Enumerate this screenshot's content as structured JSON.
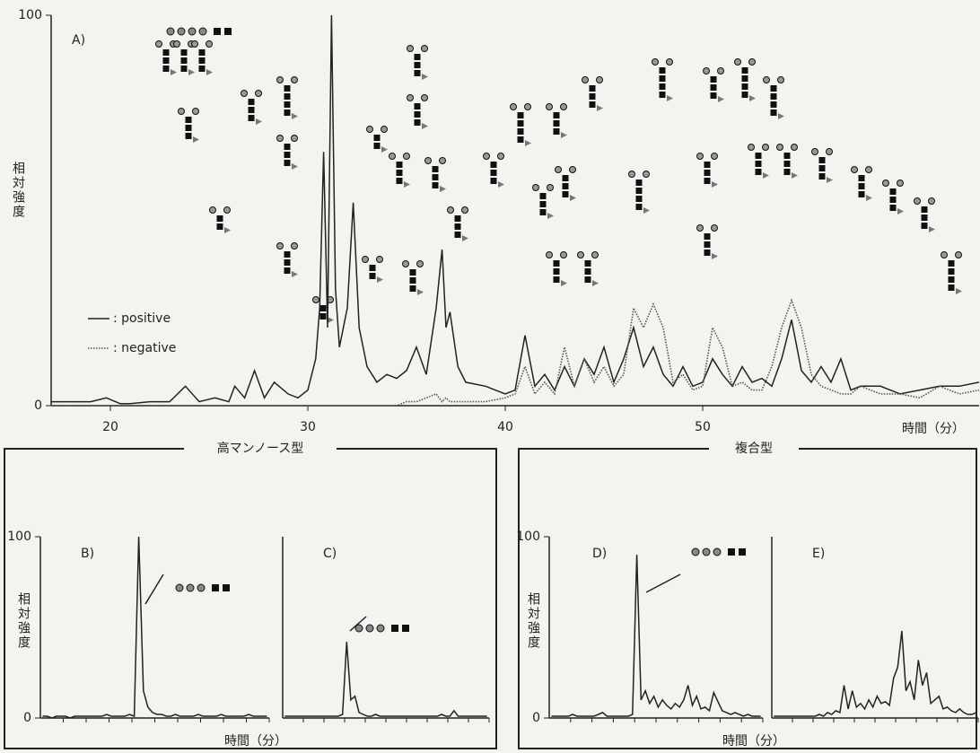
{
  "chart_data": [
    {
      "type": "line",
      "title": "A)",
      "y_label": "相対強度",
      "x_label": "時間（分）",
      "x": [
        17,
        18,
        19,
        19.8,
        20.5,
        21,
        22,
        23,
        23.8,
        24.5,
        25.3,
        26,
        26.3,
        26.8,
        27.3,
        27.8,
        28.3,
        29,
        29.5,
        30,
        30.4,
        30.6,
        30.8,
        31,
        31.2,
        31.4,
        31.6,
        32,
        32.3,
        32.6,
        33,
        33.5,
        34,
        34.5,
        35,
        35.5,
        36,
        36.5,
        36.8,
        37,
        37.2,
        37.6,
        38,
        39,
        40,
        40.5,
        41,
        41.5,
        42,
        42.5,
        43,
        43.5,
        44,
        44.5,
        45,
        45.5,
        46,
        46.5,
        47,
        47.5,
        48,
        48.5,
        49,
        49.5,
        50,
        50.5,
        51,
        51.5,
        52,
        52.5,
        53,
        53.5,
        54,
        54.5,
        55,
        55.5,
        56,
        56.5,
        57,
        57.5,
        58,
        59,
        60,
        61,
        62,
        63,
        64
      ],
      "series": [
        {
          "name": ": positive",
          "style": "solid",
          "color": "#222222",
          "values": [
            1,
            1,
            1,
            2,
            0.5,
            0.5,
            1,
            1,
            5,
            1,
            2,
            1,
            5,
            2,
            9,
            2,
            6,
            3,
            2,
            4,
            12,
            25,
            65,
            20,
            100,
            30,
            15,
            25,
            52,
            20,
            10,
            6,
            8,
            7,
            9,
            15,
            8,
            25,
            40,
            20,
            24,
            10,
            6,
            5,
            3,
            4,
            18,
            5,
            8,
            4,
            10,
            5,
            12,
            8,
            15,
            6,
            12,
            20,
            10,
            15,
            8,
            5,
            10,
            5,
            6,
            12,
            8,
            5,
            10,
            6,
            7,
            5,
            12,
            22,
            9,
            6,
            10,
            6,
            12,
            4,
            5,
            5,
            3,
            4,
            5,
            5,
            6
          ]
        },
        {
          "name": ": negative",
          "style": "dotted",
          "color": "#555555",
          "values": [
            0,
            0,
            0,
            0,
            0,
            0,
            0,
            0,
            0,
            0,
            0,
            0,
            0,
            0,
            0,
            0,
            0,
            0,
            0,
            0,
            0,
            0,
            0,
            0,
            0,
            0,
            0,
            0,
            0,
            0,
            0,
            0,
            0,
            0,
            1,
            1,
            2,
            3,
            1,
            2,
            1,
            1,
            1,
            1,
            2,
            3,
            10,
            3,
            6,
            3,
            15,
            5,
            12,
            6,
            10,
            5,
            8,
            25,
            20,
            26,
            20,
            6,
            8,
            4,
            5,
            20,
            15,
            5,
            6,
            4,
            4,
            10,
            20,
            27,
            20,
            8,
            5,
            4,
            3,
            3,
            5,
            3,
            3,
            2,
            5,
            3,
            4
          ]
        }
      ],
      "xlim": [
        17,
        64
      ],
      "ylim": [
        0,
        100
      ],
      "xticks": [
        20,
        30,
        40,
        50
      ],
      "yticks": [
        0,
        100
      ]
    },
    {
      "type": "line",
      "title": "B)",
      "color": "#222222",
      "ylim": [
        0,
        100
      ],
      "yticks": [
        0,
        100
      ],
      "values": [
        1,
        1,
        0,
        1,
        1,
        1,
        0,
        1,
        1,
        1,
        1,
        1,
        1,
        1,
        2,
        1,
        1,
        1,
        1,
        2,
        1,
        100,
        15,
        6,
        3,
        2,
        2,
        1,
        1,
        2,
        1,
        1,
        1,
        1,
        2,
        1,
        1,
        1,
        1,
        2,
        1,
        1,
        1,
        1,
        1,
        2,
        1,
        1,
        1,
        1
      ]
    },
    {
      "type": "line",
      "title": "C)",
      "color": "#222222",
      "ylim": [
        0,
        100
      ],
      "values": [
        1,
        1,
        1,
        1,
        1,
        1,
        1,
        1,
        1,
        1,
        1,
        1,
        1,
        1,
        2,
        42,
        10,
        12,
        3,
        2,
        1,
        1,
        2,
        1,
        1,
        1,
        1,
        1,
        1,
        1,
        1,
        1,
        1,
        1,
        1,
        1,
        1,
        1,
        2,
        1,
        1,
        4,
        1,
        1,
        1,
        1,
        1,
        1,
        1,
        1
      ]
    },
    {
      "type": "line",
      "title": "D)",
      "color": "#222222",
      "ylim": [
        0,
        100
      ],
      "yticks": [
        0,
        100
      ],
      "values": [
        1,
        1,
        1,
        1,
        1,
        2,
        1,
        1,
        1,
        1,
        1,
        2,
        3,
        1,
        1,
        1,
        1,
        1,
        1,
        2,
        90,
        10,
        15,
        8,
        12,
        6,
        10,
        7,
        5,
        8,
        6,
        10,
        18,
        7,
        12,
        5,
        6,
        4,
        14,
        9,
        4,
        3,
        2,
        3,
        2,
        1,
        2,
        1,
        1,
        1
      ]
    },
    {
      "type": "line",
      "title": "E)",
      "color": "#222222",
      "ylim": [
        0,
        100
      ],
      "values": [
        1,
        1,
        1,
        1,
        1,
        1,
        1,
        1,
        1,
        1,
        1,
        2,
        1,
        3,
        2,
        4,
        3,
        18,
        5,
        15,
        6,
        8,
        5,
        10,
        6,
        12,
        8,
        9,
        7,
        22,
        28,
        48,
        15,
        20,
        10,
        32,
        18,
        25,
        8,
        10,
        12,
        5,
        6,
        4,
        3,
        5,
        3,
        2,
        2,
        3
      ]
    }
  ],
  "groups": [
    {
      "title": "高マンノース型",
      "y_label": "相対強度",
      "x_label": "時間（分）"
    },
    {
      "title": "複合型",
      "y_label": "相対強度",
      "x_label": "時間（分）"
    }
  ]
}
